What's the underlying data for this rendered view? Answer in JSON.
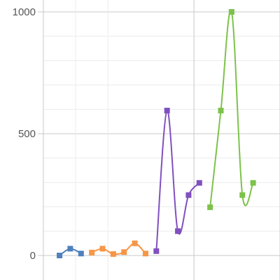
{
  "chart_data": {
    "type": "line",
    "title": "",
    "xlabel": "",
    "ylabel": "",
    "ylim": [
      0,
      1000
    ],
    "xlim": [
      0,
      22
    ],
    "yticks": [
      0,
      500,
      1000
    ],
    "xgrid": [
      3,
      6,
      14,
      22
    ],
    "grid": true,
    "legend": "none",
    "series": [
      {
        "color": "#4f81bd",
        "points": [
          [
            1.5,
            0
          ],
          [
            2.5,
            28
          ],
          [
            3.5,
            8
          ]
        ]
      },
      {
        "color": "#f79646",
        "points": [
          [
            4.5,
            12
          ],
          [
            5.5,
            28
          ],
          [
            6.5,
            6
          ],
          [
            7.5,
            14
          ],
          [
            8.5,
            50
          ],
          [
            9.5,
            8
          ]
        ]
      },
      {
        "color": "#8050c0",
        "points": [
          [
            10.5,
            18
          ],
          [
            11.5,
            595
          ],
          [
            12.5,
            100
          ],
          [
            13.5,
            248
          ],
          [
            14.5,
            298
          ]
        ]
      },
      {
        "color": "#7dc24b",
        "points": [
          [
            15.5,
            198
          ],
          [
            16.5,
            595
          ],
          [
            17.5,
            1000
          ],
          [
            18.5,
            248
          ],
          [
            19.5,
            298
          ]
        ]
      }
    ]
  }
}
